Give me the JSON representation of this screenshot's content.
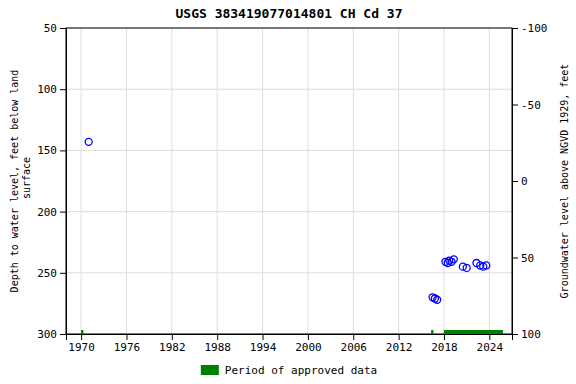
{
  "chart_data": {
    "type": "scatter",
    "title": "USGS 383419077014801 CH Cd  37",
    "ylabel": "Depth to water level, feet below land\n surface",
    "y2label": "Groundwater level above NGVD 1929, feet",
    "xlim": [
      1968,
      2027
    ],
    "xticks": [
      1970,
      1976,
      1982,
      1988,
      1994,
      2000,
      2006,
      2012,
      2018,
      2024
    ],
    "ylim": [
      300,
      50
    ],
    "yticks": [
      50,
      100,
      150,
      200,
      250,
      300
    ],
    "y2lim": [
      100,
      -100
    ],
    "y2ticks": [
      100,
      50,
      0,
      -50,
      -100
    ],
    "grid": true,
    "legend": "bottom",
    "series": [
      {
        "type": "scatter",
        "marker": "circle",
        "color": "#0000ff",
        "x": [
          1971.0,
          2016.5,
          2016.8,
          2017.1,
          2018.2,
          2018.5,
          2018.7,
          2019.0,
          2019.3,
          2020.5,
          2021.0,
          2022.3,
          2022.8,
          2023.2,
          2023.6
        ],
        "values": [
          143,
          270,
          271,
          272,
          241,
          242,
          240,
          241,
          239,
          245,
          246,
          242,
          244,
          245,
          244
        ]
      },
      {
        "type": "span",
        "name": "Period of approved data",
        "color": "#008000",
        "x": [
          [
            1970.0,
            1970.3
          ],
          [
            2016.3,
            2016.6
          ],
          [
            2018.0,
            2025.8
          ]
        ]
      }
    ]
  }
}
